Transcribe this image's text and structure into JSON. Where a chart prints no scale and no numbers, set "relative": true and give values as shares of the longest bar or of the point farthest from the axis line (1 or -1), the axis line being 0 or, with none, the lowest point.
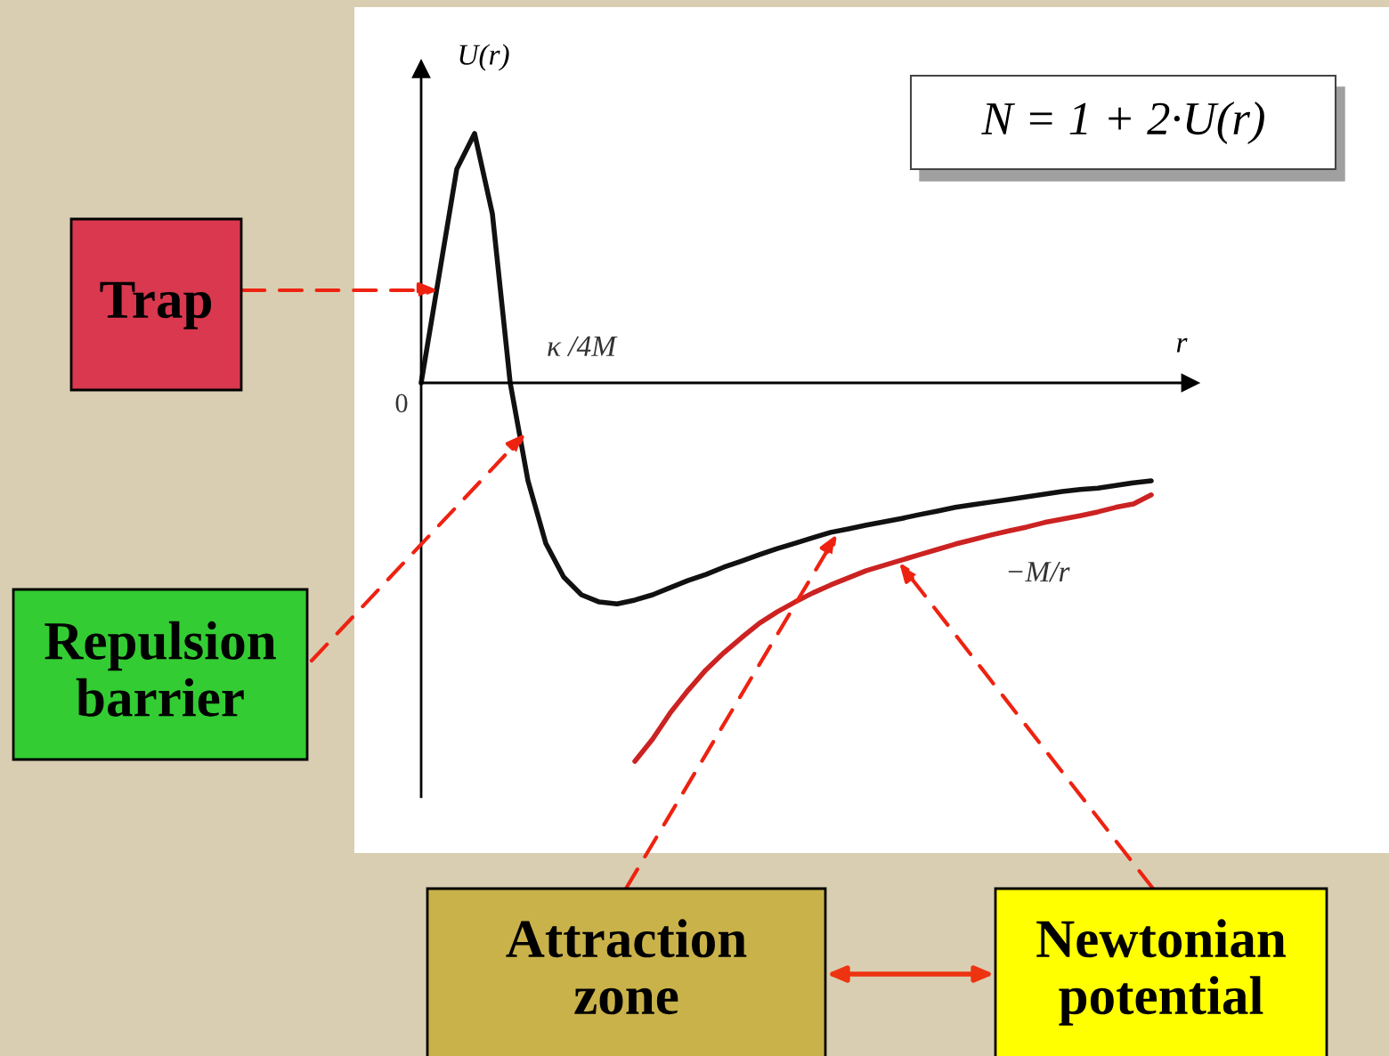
{
  "chart_data": {
    "type": "line",
    "relative": true,
    "xlabel": "r",
    "ylabel": "U(r)",
    "categories": [
      null,
      null,
      null,
      null,
      null,
      null,
      null,
      null,
      null,
      null,
      null,
      null,
      null,
      null,
      null,
      null,
      null,
      null,
      null,
      null,
      null,
      null,
      null,
      null,
      null,
      null,
      null,
      null,
      null,
      null,
      null,
      null,
      null,
      null,
      null,
      null,
      null,
      null,
      null,
      null,
      null,
      null
    ],
    "series": [
      {
        "color": "#111111",
        "values": [
          0,
          0.282,
          0.565,
          0.659,
          0.447,
          0,
          -0.259,
          -0.424,
          -0.513,
          -0.56,
          -0.579,
          -0.584,
          -0.574,
          -0.56,
          -0.541,
          -0.522,
          -0.506,
          -0.487,
          -0.471,
          -0.454,
          -0.438,
          -0.424,
          -0.409,
          -0.395,
          -0.386,
          -0.376,
          -0.367,
          -0.358,
          -0.348,
          -0.339,
          -0.329,
          -0.322,
          -0.315,
          -0.308,
          -0.301,
          -0.294,
          -0.287,
          -0.282,
          -0.278,
          -0.271,
          -0.264,
          -0.259
        ]
      },
      {
        "name": "−M/r",
        "color": "#cc2222",
        "values": [
          null,
          null,
          null,
          null,
          null,
          null,
          null,
          null,
          null,
          null,
          null,
          null,
          -1,
          -0.941,
          -0.871,
          -0.812,
          -0.758,
          -0.713,
          -0.673,
          -0.635,
          -0.605,
          -0.579,
          -0.555,
          -0.534,
          -0.515,
          -0.496,
          -0.482,
          -0.468,
          -0.454,
          -0.44,
          -0.426,
          -0.414,
          -0.402,
          -0.391,
          -0.381,
          -0.369,
          -0.36,
          -0.351,
          -0.341,
          -0.329,
          -0.32,
          -0.296
        ]
      }
    ],
    "annotations": [
      "0",
      "κ /4M",
      "N = 1 + 2·U(r)",
      "Trap",
      "Repulsion\nbarrier",
      "Attraction\nzone",
      "Newtonian\npotential"
    ],
    "legend": false
  }
}
